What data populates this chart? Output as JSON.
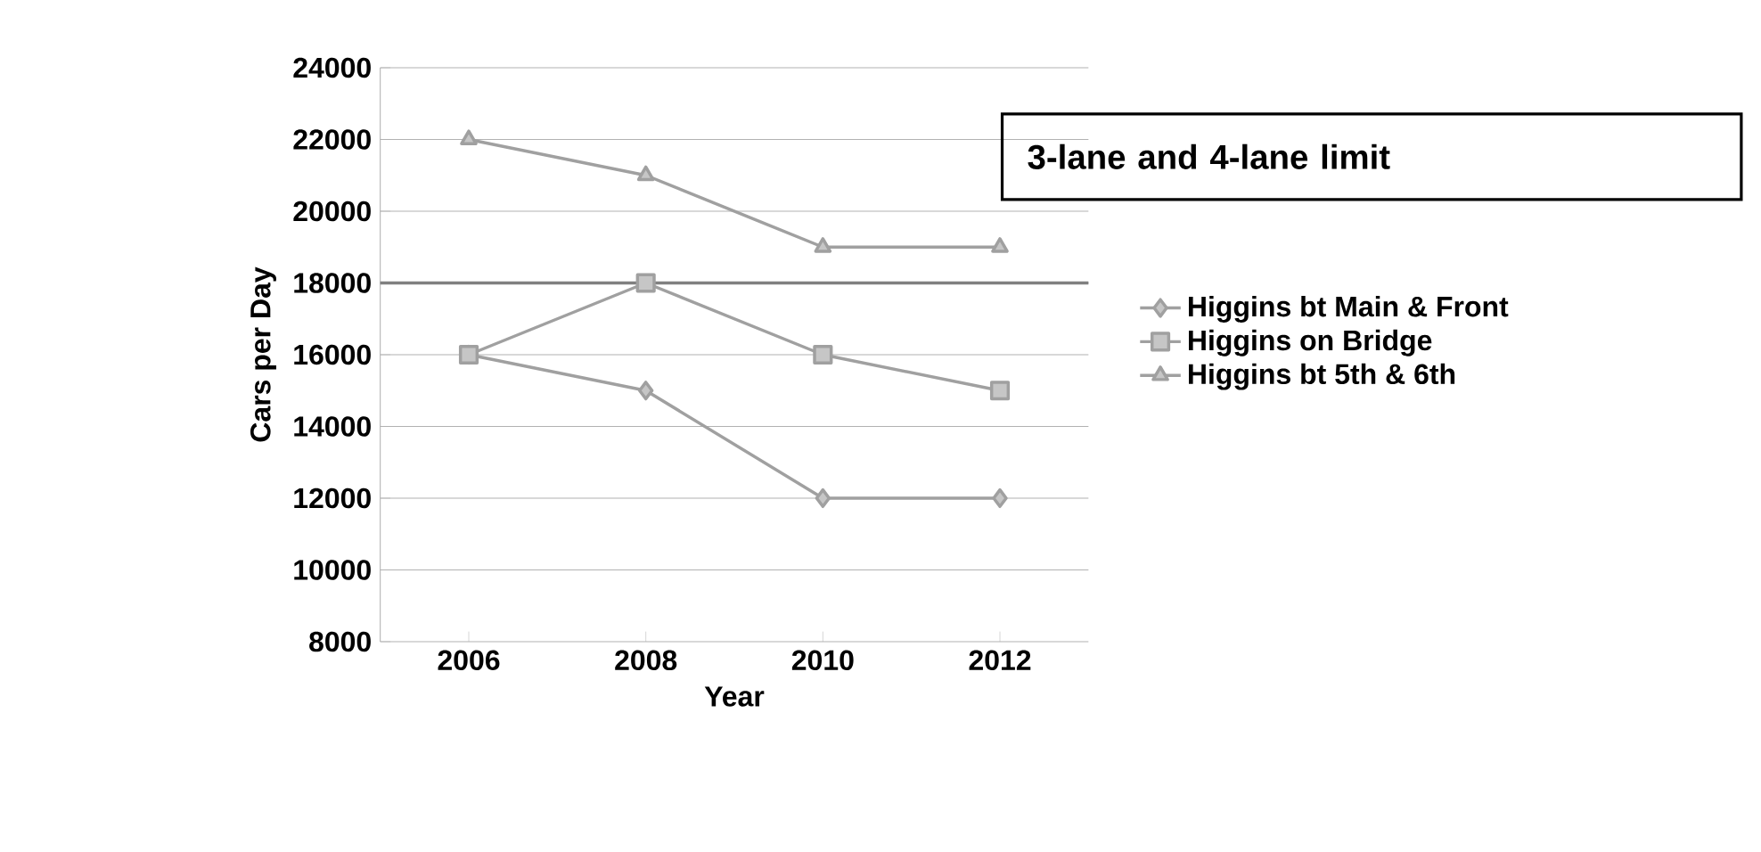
{
  "chart_data": {
    "type": "line",
    "xlabel": "Year",
    "ylabel": "Cars per Day",
    "categories": [
      "2006",
      "2008",
      "2010",
      "2012"
    ],
    "series": [
      {
        "name": "Higgins bt Main & Front",
        "color": "#a0a0a0",
        "marker": "diamond",
        "values": [
          16000,
          15000,
          12000,
          12000
        ]
      },
      {
        "name": "Higgins on Bridge",
        "color": "#a0a0a0",
        "marker": "square",
        "values": [
          16000,
          18000,
          16000,
          15000
        ]
      },
      {
        "name": "Higgins bt 5th & 6th",
        "color": "#a0a0a0",
        "marker": "triangle",
        "values": [
          22000,
          21000,
          19000,
          19000
        ]
      }
    ],
    "ylim": [
      8000,
      24000
    ],
    "yticks": [
      8000,
      10000,
      12000,
      14000,
      16000,
      18000,
      20000,
      22000,
      24000
    ],
    "ref_lines": [
      {
        "axis": "y",
        "value": 18000,
        "color": "#808080"
      }
    ],
    "annotations": [
      "3-lane and 4-lane limit"
    ],
    "grid": "y",
    "legend": "right"
  }
}
